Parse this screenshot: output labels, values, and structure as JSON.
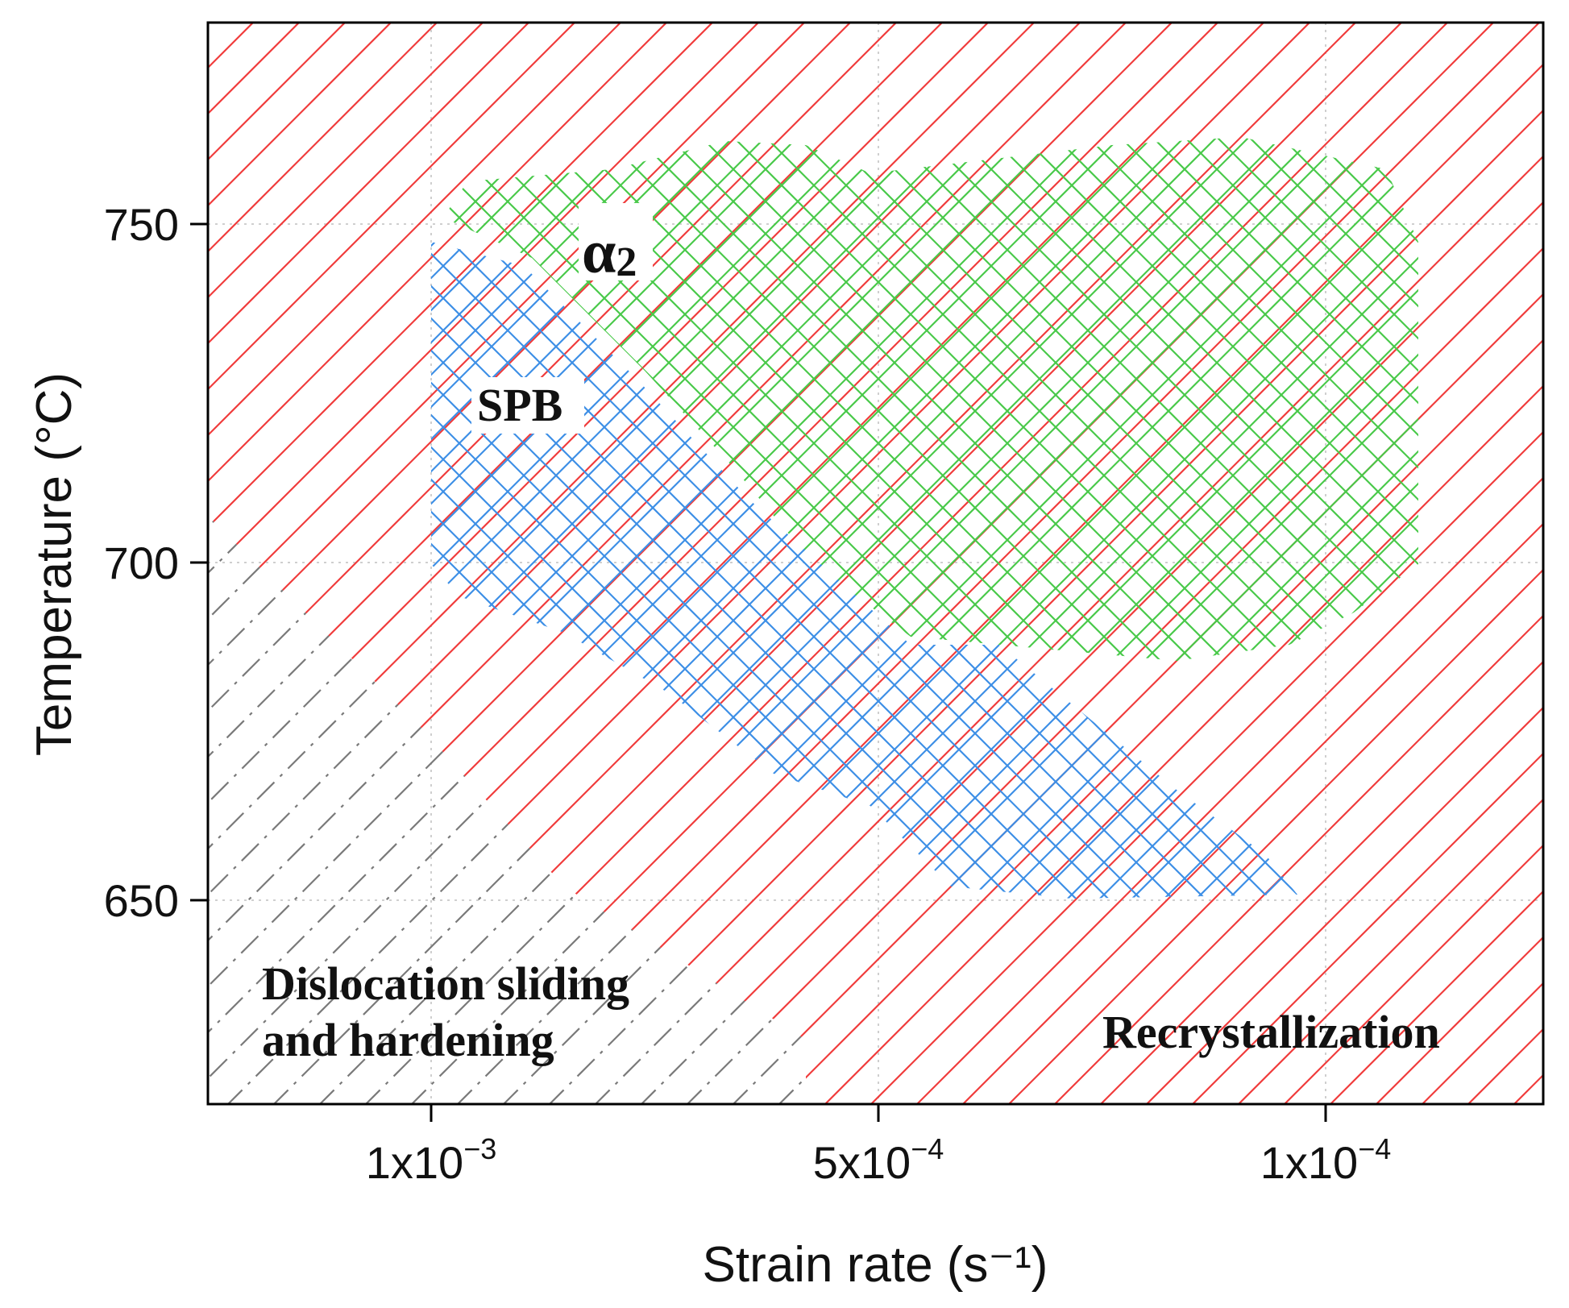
{
  "chart_data": {
    "type": "region-map",
    "title": "",
    "xlabel": "Strain rate (s⁻¹)",
    "ylabel": "Temperature (°C)",
    "x_ticks": [
      {
        "base": "1x10",
        "exp": "−3",
        "value": 0.001
      },
      {
        "base": "5x10",
        "exp": "−4",
        "value": 0.0005
      },
      {
        "base": "1x10",
        "exp": "−4",
        "value": 0.0001
      }
    ],
    "x_axis_order": "decreasing strain rate to the right",
    "y_ticks": [
      650,
      700,
      750
    ],
    "ylim": [
      617,
      780
    ],
    "grid": true,
    "regions": [
      {
        "name": "Recrystallization",
        "label": "Recrystallization",
        "pattern": "diagonal hatch",
        "color": "#f03c3c"
      },
      {
        "name": "Dislocation sliding and hardening",
        "label_lines": [
          "Dislocation sliding",
          "and hardening"
        ],
        "pattern": "dash-dot diagonal hatch",
        "color": "#7a7a7a"
      },
      {
        "name": "SPB",
        "label": "SPB",
        "pattern": "cross hatch",
        "color": "#3d8fe6"
      },
      {
        "name": "alpha2",
        "label_symbol": "α",
        "label_sub": "2",
        "pattern": "cross hatch",
        "color": "#49c94a"
      }
    ]
  }
}
